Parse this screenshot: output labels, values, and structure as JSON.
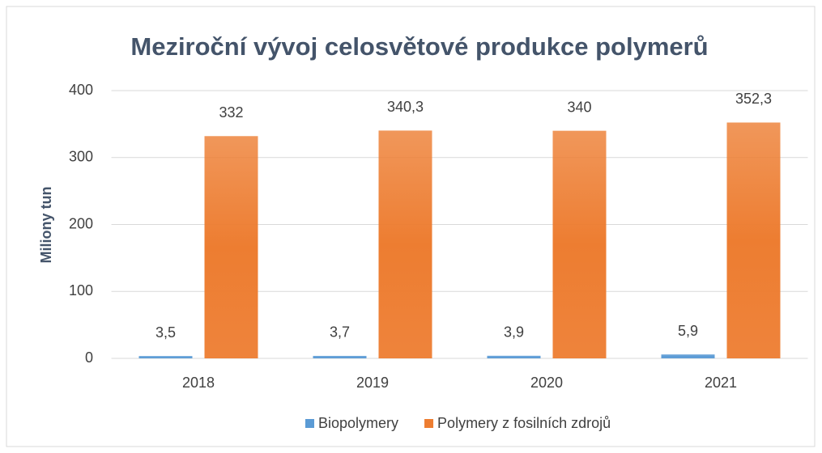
{
  "chart_data": {
    "type": "bar",
    "title": "Meziroční vývoj celosvětové produkce polymerů",
    "y_label": "Miliony tun",
    "categories": [
      "2018",
      "2019",
      "2020",
      "2021"
    ],
    "series": [
      {
        "name": "Biopolymery",
        "color": "#5b9bd5",
        "values": [
          3.5,
          3.7,
          3.9,
          5.9
        ],
        "value_labels": [
          "3,5",
          "3,7",
          "3,9",
          "5,9"
        ]
      },
      {
        "name": "Polymery z fosilních zdrojů",
        "color": "#ed7d31",
        "values": [
          332,
          340.3,
          340,
          352.3
        ],
        "value_labels": [
          "332",
          "340,3",
          "340",
          "352,3"
        ]
      }
    ],
    "ylim": [
      0,
      400
    ],
    "yticks": [
      0,
      100,
      200,
      300,
      400
    ],
    "grid": true,
    "legend": "bottom"
  }
}
